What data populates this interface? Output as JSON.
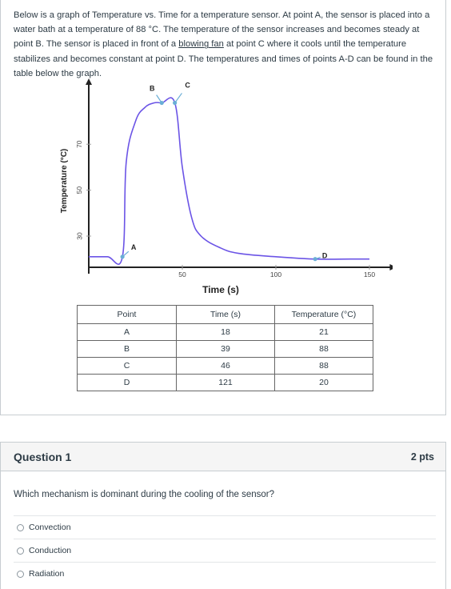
{
  "intro": {
    "part1": "Below is a graph of Temperature vs. Time for a temperature sensor. At point A, the sensor is placed into a water bath at a temperature of 88 °C. The temperature of the sensor increases and becomes steady at point B. The sensor is placed in front of a ",
    "link": "blowing fan",
    "part2": " at point C where it cools until the temperature stabilizes and becomes constant at point D. The temperatures and times of points A-D can be found in the table below the graph."
  },
  "chart_data": {
    "type": "line",
    "xlabel": "Time (s)",
    "ylabel": "Temperature (°C)",
    "x_ticks": [
      50,
      100,
      150
    ],
    "y_ticks": [
      30,
      50,
      70
    ],
    "xlim": [
      0,
      160
    ],
    "ylim": [
      13,
      85
    ],
    "series": [
      {
        "x": [
          0,
          10,
          18,
          20,
          25,
          30,
          35,
          39,
          46,
          50,
          55,
          60,
          70,
          80,
          100,
          121,
          140,
          150
        ],
        "y": [
          21,
          21,
          21,
          62,
          80,
          86,
          88,
          88,
          88,
          60,
          38,
          30,
          25,
          22.5,
          21,
          20,
          20,
          20
        ]
      }
    ],
    "point_labels": [
      "A",
      "B",
      "C",
      "D"
    ],
    "point_x": [
      18,
      39,
      46,
      121
    ],
    "point_y": [
      21,
      88,
      88,
      20
    ]
  },
  "table": {
    "headers": [
      "Point",
      "Time (s)",
      "Temperature (°C)"
    ],
    "rows": [
      [
        "A",
        "18",
        "21"
      ],
      [
        "B",
        "39",
        "88"
      ],
      [
        "C",
        "46",
        "88"
      ],
      [
        "D",
        "121",
        "20"
      ]
    ]
  },
  "question": {
    "title": "Question 1",
    "points": "2 pts",
    "text": "Which mechanism is dominant during the cooling of the sensor?",
    "answers": [
      "Convection",
      "Conduction",
      "Radiation"
    ]
  },
  "colors": {
    "curve": "#6b54e6",
    "marker": "#6aaed6",
    "border": "#c7cdd1",
    "text": "#2d3b45"
  }
}
